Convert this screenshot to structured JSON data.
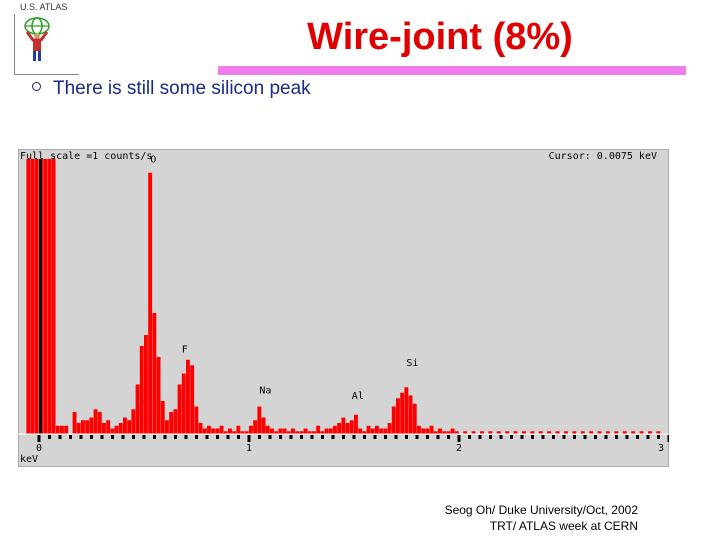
{
  "logo": {
    "text": "U.S. ATLAS"
  },
  "slide": {
    "title": "Wire-joint (8%)",
    "bullet": "There is still some silicon peak",
    "footer_line1": "Seog Oh/ Duke University/Oct, 2002",
    "footer_line2": "TRT/ ATLAS week at CERN"
  },
  "colors": {
    "title": "#e00000",
    "accent_bar": "#f07cf0",
    "bars": "#ff0000",
    "plot_bg": "#d4d4d4",
    "bullet": "#1a2a8a"
  },
  "chart_data": {
    "type": "bar",
    "header_left": "Full scale =1  counts/s",
    "header_right": "Cursor: 0.0075 keV",
    "xlabel": "keV",
    "xlim": [
      -0.1,
      3.0
    ],
    "ylim": [
      0,
      1.0
    ],
    "ticks": [
      {
        "x": 0,
        "label": "0"
      },
      {
        "x": 1,
        "label": "1"
      },
      {
        "x": 2,
        "label": "2"
      },
      {
        "x": 3,
        "label": "3"
      }
    ],
    "peak_labels": [
      {
        "x": 0.52,
        "y": 0.98,
        "label": "O"
      },
      {
        "x": 0.67,
        "y": 0.29,
        "label": "F"
      },
      {
        "x": 1.04,
        "y": 0.14,
        "label": "Na"
      },
      {
        "x": 1.48,
        "y": 0.12,
        "label": "Al"
      },
      {
        "x": 1.74,
        "y": 0.24,
        "label": "Si"
      }
    ],
    "cursor_x": 0.0075,
    "bin_width": 0.02,
    "bins": [
      [
        -0.06,
        1.0
      ],
      [
        -0.04,
        1.0
      ],
      [
        -0.02,
        1.0
      ],
      [
        0.0,
        1.0
      ],
      [
        0.02,
        1.0
      ],
      [
        0.04,
        1.0
      ],
      [
        0.06,
        1.0
      ],
      [
        0.08,
        0.03
      ],
      [
        0.1,
        0.03
      ],
      [
        0.12,
        0.03
      ],
      [
        0.16,
        0.08
      ],
      [
        0.18,
        0.04
      ],
      [
        0.2,
        0.05
      ],
      [
        0.22,
        0.05
      ],
      [
        0.24,
        0.06
      ],
      [
        0.26,
        0.09
      ],
      [
        0.28,
        0.08
      ],
      [
        0.3,
        0.04
      ],
      [
        0.32,
        0.05
      ],
      [
        0.34,
        0.02
      ],
      [
        0.36,
        0.03
      ],
      [
        0.38,
        0.04
      ],
      [
        0.4,
        0.06
      ],
      [
        0.42,
        0.05
      ],
      [
        0.44,
        0.09
      ],
      [
        0.46,
        0.18
      ],
      [
        0.48,
        0.32
      ],
      [
        0.5,
        0.36
      ],
      [
        0.52,
        0.95
      ],
      [
        0.54,
        0.44
      ],
      [
        0.56,
        0.28
      ],
      [
        0.58,
        0.12
      ],
      [
        0.6,
        0.05
      ],
      [
        0.62,
        0.08
      ],
      [
        0.64,
        0.09
      ],
      [
        0.66,
        0.18
      ],
      [
        0.68,
        0.22
      ],
      [
        0.7,
        0.27
      ],
      [
        0.72,
        0.25
      ],
      [
        0.74,
        0.1
      ],
      [
        0.76,
        0.04
      ],
      [
        0.78,
        0.02
      ],
      [
        0.8,
        0.03
      ],
      [
        0.82,
        0.02
      ],
      [
        0.84,
        0.02
      ],
      [
        0.86,
        0.03
      ],
      [
        0.88,
        0.01
      ],
      [
        0.9,
        0.02
      ],
      [
        0.92,
        0.01
      ],
      [
        0.94,
        0.03
      ],
      [
        0.96,
        0.01
      ],
      [
        0.98,
        0.01
      ],
      [
        1.0,
        0.03
      ],
      [
        1.02,
        0.05
      ],
      [
        1.04,
        0.1
      ],
      [
        1.06,
        0.06
      ],
      [
        1.08,
        0.03
      ],
      [
        1.1,
        0.02
      ],
      [
        1.12,
        0.01
      ],
      [
        1.14,
        0.02
      ],
      [
        1.16,
        0.02
      ],
      [
        1.18,
        0.01
      ],
      [
        1.2,
        0.02
      ],
      [
        1.22,
        0.01
      ],
      [
        1.24,
        0.01
      ],
      [
        1.26,
        0.02
      ],
      [
        1.28,
        0.01
      ],
      [
        1.3,
        0.01
      ],
      [
        1.32,
        0.03
      ],
      [
        1.34,
        0.01
      ],
      [
        1.36,
        0.02
      ],
      [
        1.38,
        0.02
      ],
      [
        1.4,
        0.03
      ],
      [
        1.42,
        0.04
      ],
      [
        1.44,
        0.06
      ],
      [
        1.46,
        0.04
      ],
      [
        1.48,
        0.05
      ],
      [
        1.5,
        0.07
      ],
      [
        1.52,
        0.02
      ],
      [
        1.54,
        0.01
      ],
      [
        1.56,
        0.03
      ],
      [
        1.58,
        0.02
      ],
      [
        1.6,
        0.03
      ],
      [
        1.62,
        0.02
      ],
      [
        1.64,
        0.02
      ],
      [
        1.66,
        0.04
      ],
      [
        1.68,
        0.1
      ],
      [
        1.7,
        0.13
      ],
      [
        1.72,
        0.15
      ],
      [
        1.74,
        0.17
      ],
      [
        1.76,
        0.14
      ],
      [
        1.78,
        0.11
      ],
      [
        1.8,
        0.03
      ],
      [
        1.82,
        0.02
      ],
      [
        1.84,
        0.02
      ],
      [
        1.86,
        0.03
      ],
      [
        1.88,
        0.01
      ],
      [
        1.9,
        0.02
      ],
      [
        1.92,
        0.01
      ],
      [
        1.94,
        0.01
      ],
      [
        1.96,
        0.02
      ],
      [
        1.98,
        0.01
      ],
      [
        2.02,
        0.01
      ],
      [
        2.06,
        0.01
      ],
      [
        2.1,
        0.01
      ],
      [
        2.14,
        0.01
      ],
      [
        2.18,
        0.01
      ],
      [
        2.22,
        0.01
      ],
      [
        2.26,
        0.01
      ],
      [
        2.3,
        0.01
      ],
      [
        2.34,
        0.01
      ],
      [
        2.38,
        0.01
      ],
      [
        2.42,
        0.01
      ],
      [
        2.46,
        0.01
      ],
      [
        2.5,
        0.01
      ],
      [
        2.54,
        0.01
      ],
      [
        2.58,
        0.01
      ],
      [
        2.62,
        0.01
      ],
      [
        2.66,
        0.01
      ],
      [
        2.7,
        0.01
      ],
      [
        2.74,
        0.01
      ],
      [
        2.78,
        0.01
      ],
      [
        2.82,
        0.01
      ],
      [
        2.86,
        0.01
      ],
      [
        2.9,
        0.01
      ],
      [
        2.94,
        0.01
      ]
    ]
  }
}
